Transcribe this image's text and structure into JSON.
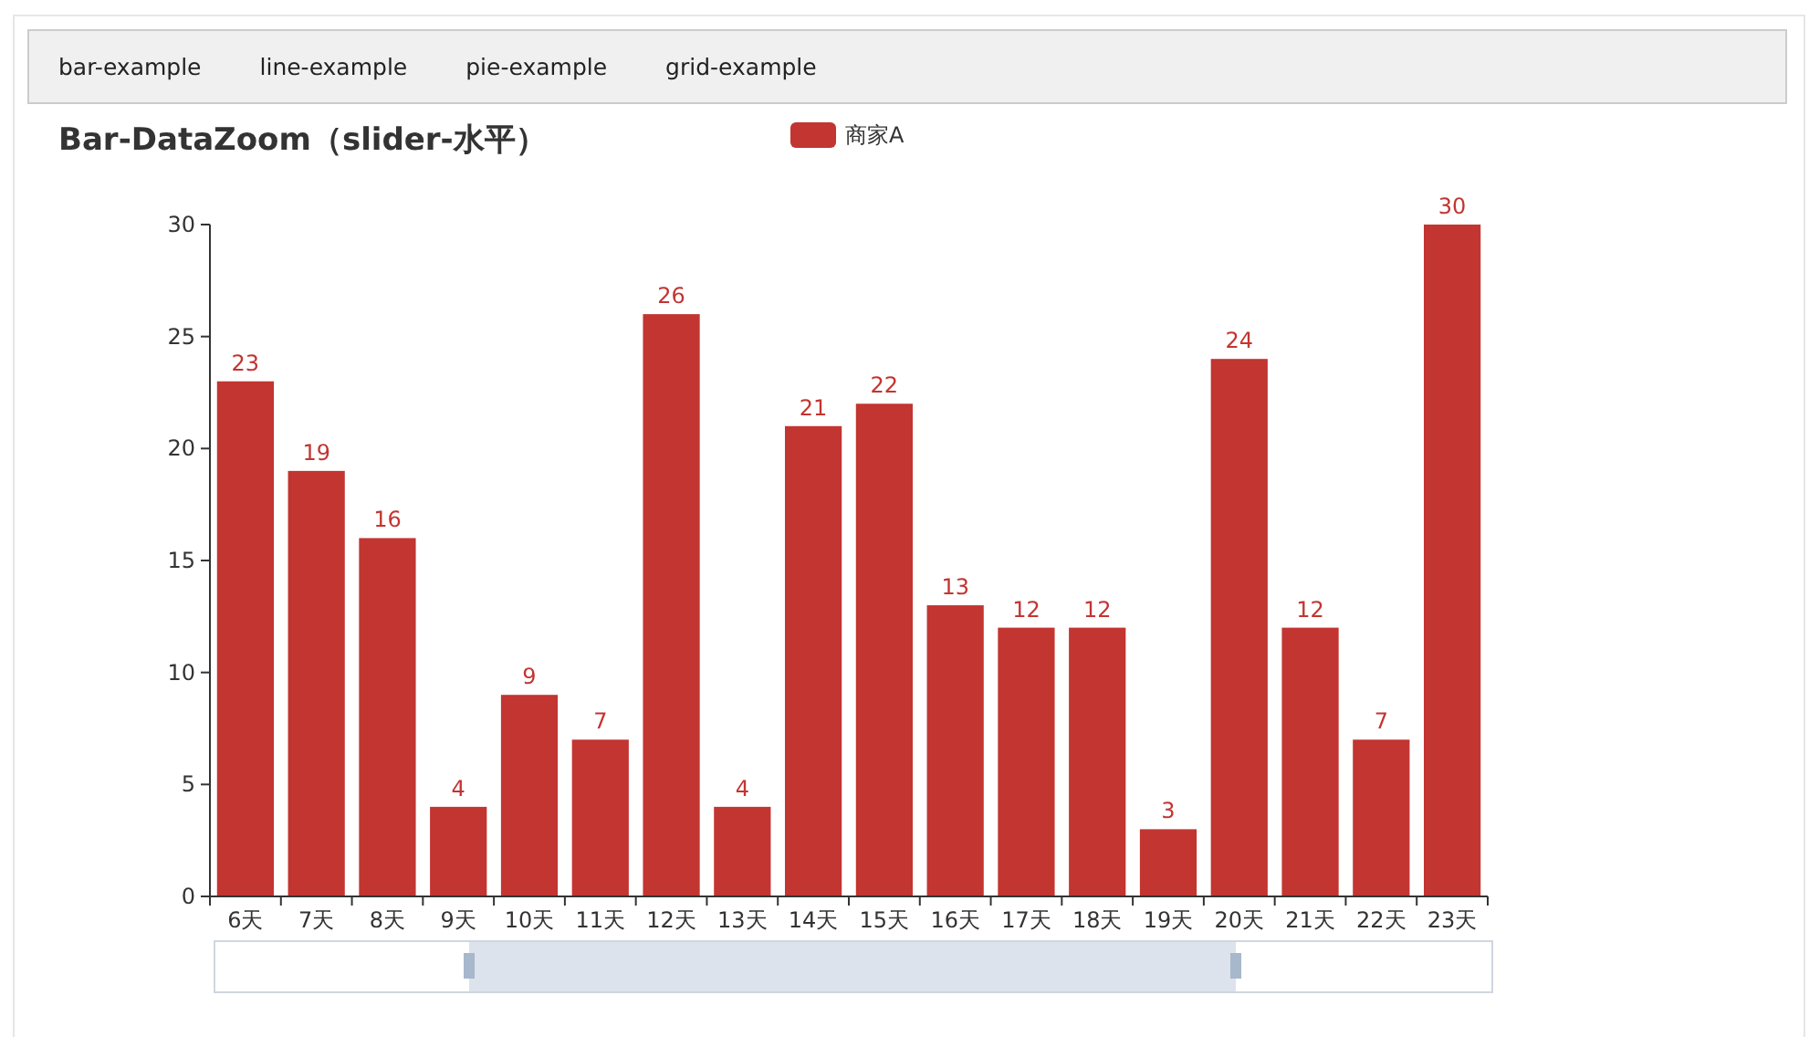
{
  "chart_data": {
    "type": "bar",
    "title": "Bar-DataZoom（slider-水平）",
    "categories": [
      "6天",
      "7天",
      "8天",
      "9天",
      "10天",
      "11天",
      "12天",
      "13天",
      "14天",
      "15天",
      "16天",
      "17天",
      "18天",
      "19天",
      "20天",
      "21天",
      "22天",
      "23天"
    ],
    "series": [
      {
        "name": "商家A",
        "color": "#c23531",
        "values": [
          23,
          19,
          16,
          4,
          9,
          7,
          26,
          4,
          21,
          22,
          13,
          12,
          12,
          3,
          24,
          12,
          7,
          30
        ]
      }
    ],
    "ylim": [
      0,
      30
    ],
    "yticks": [
      0,
      5,
      10,
      15,
      20,
      25,
      30
    ],
    "data_labels": true,
    "legend": "top",
    "grid": false,
    "annotations": [
      "bar-example",
      "line-example",
      "pie-example",
      "grid-example"
    ]
  }
}
